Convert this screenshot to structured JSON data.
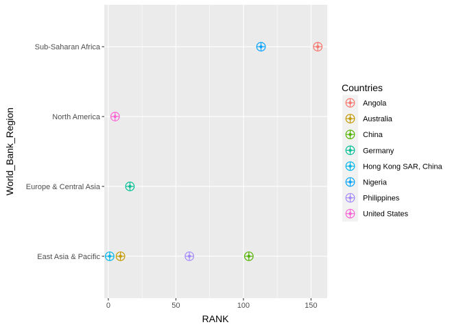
{
  "chart_data": {
    "type": "scatter",
    "title": "",
    "xlabel": "RANK",
    "ylabel": "World_Bank_Region",
    "xlim": [
      -3,
      162
    ],
    "x_ticks": [
      0,
      50,
      100,
      150
    ],
    "y_categories": [
      "East Asia & Pacific",
      "Europe & Central Asia",
      "North America",
      "Sub-Saharan Africa"
    ],
    "grid": true,
    "legend": {
      "title": "Countries",
      "placement": "right"
    },
    "series": [
      {
        "name": "Angola",
        "color": "#F8766D",
        "points": [
          {
            "x": 155,
            "y": "Sub-Saharan Africa"
          }
        ]
      },
      {
        "name": "Australia",
        "color": "#C49A00",
        "points": [
          {
            "x": 9,
            "y": "East Asia & Pacific"
          }
        ]
      },
      {
        "name": "China",
        "color": "#53B400",
        "points": [
          {
            "x": 104,
            "y": "East Asia & Pacific"
          }
        ]
      },
      {
        "name": "Germany",
        "color": "#00C094",
        "points": [
          {
            "x": 16,
            "y": "Europe & Central Asia"
          }
        ]
      },
      {
        "name": "Hong Kong SAR, China",
        "color": "#00B6EB",
        "points": [
          {
            "x": 1,
            "y": "East Asia & Pacific"
          }
        ]
      },
      {
        "name": "Nigeria",
        "color": "#06A4FF",
        "points": [
          {
            "x": 113,
            "y": "Sub-Saharan Africa"
          }
        ]
      },
      {
        "name": "Philippines",
        "color": "#A58AFF",
        "points": [
          {
            "x": 60,
            "y": "East Asia & Pacific"
          }
        ]
      },
      {
        "name": "United States",
        "color": "#FB61D7",
        "points": [
          {
            "x": 5,
            "y": "North America"
          }
        ]
      }
    ]
  }
}
